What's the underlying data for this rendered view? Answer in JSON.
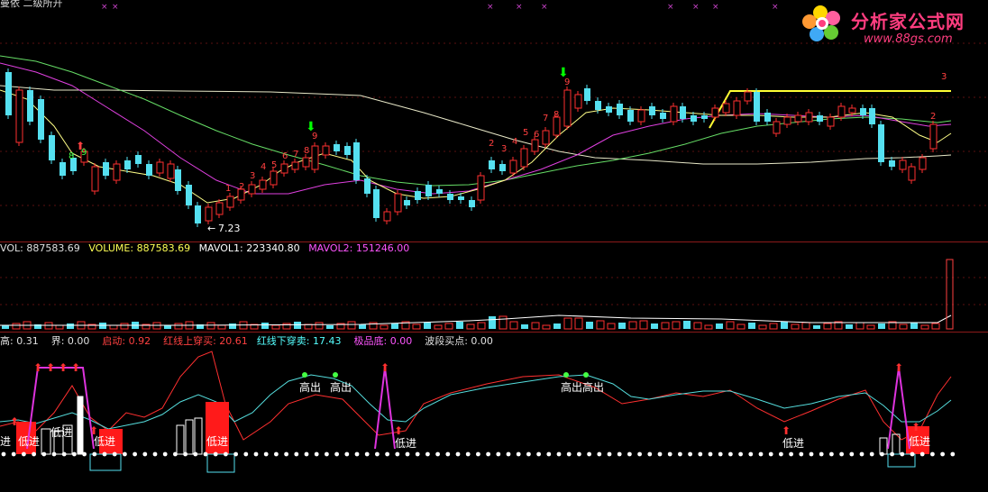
{
  "title_fragment": "曼依 二级所开",
  "logo": {
    "title": "分析家公式网",
    "url": "www.88gs.com"
  },
  "price_panel": {
    "low_label": "7.23",
    "numbers_row1": [
      "1",
      "2",
      "3",
      "4",
      "5",
      "6",
      "7",
      "8",
      "9"
    ],
    "numbers_row2": [
      "2",
      "3",
      "4",
      "5",
      "6",
      "7",
      "8",
      "9"
    ],
    "numbers_right": [
      "3",
      "2"
    ],
    "early_numbers": [
      "8",
      "9"
    ]
  },
  "volume_panel": {
    "vol_label": "VOL: 887583.69",
    "volume_label": "VOLUME: 887583.69",
    "mavol1_label": "MAVOL1: 223340.80",
    "mavol2_label": "MAVOL2: 151246.00",
    "colors": {
      "vol": "#e0e0e0",
      "volume": "#ffff55",
      "mavol1": "#ffffff",
      "mavol2": "#ff55ff"
    }
  },
  "indicator_panel": {
    "labels": [
      {
        "text": "高: 0.31",
        "color": "#e0e0e0"
      },
      {
        "text": "界: 0.00",
        "color": "#e0e0e0"
      },
      {
        "text": "启动: 0.92",
        "color": "#ff4040"
      },
      {
        "text": "红线上穿买: 20.61",
        "color": "#ff4040"
      },
      {
        "text": "红线下穿卖: 17.43",
        "color": "#55ffff"
      },
      {
        "text": "极品底: 0.00",
        "color": "#ff55ff"
      },
      {
        "text": "波段买点: 0.00",
        "color": "#e0e0e0"
      }
    ],
    "annotations": {
      "high_out": "高出",
      "low_in": "低进",
      "high_out_double": "高出高出",
      "in_partial": "进"
    }
  }
}
